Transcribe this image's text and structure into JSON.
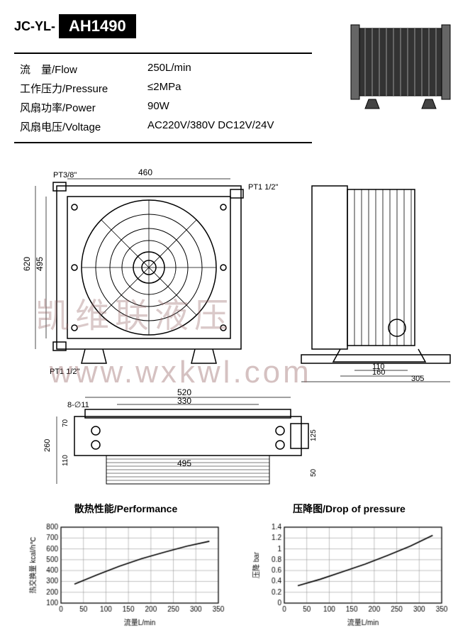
{
  "header": {
    "prefix": "JC-YL-",
    "model": "AH1490"
  },
  "specs": [
    {
      "label": "流　量/Flow",
      "value": "250L/min"
    },
    {
      "label": "工作压力/Pressure",
      "value": "≤2MPa"
    },
    {
      "label": "风扇功率/Power",
      "value": "90W"
    },
    {
      "label": "风扇电压/Voltage",
      "value": "AC220V/380V DC12V/24V"
    }
  ],
  "watermarks": {
    "chinese": "凯维联液压",
    "url": "www.wxkwl.com"
  },
  "dimensions": {
    "front": {
      "width_top": "460",
      "pt_top_left": "PT3/8\"",
      "pt_right": "PT1 1/2\"",
      "pt_bottom": "PT1 1/2\"",
      "height_left_outer": "620",
      "height_left_inner": "495"
    },
    "side": {
      "foot_inner": "110",
      "foot_mid": "160",
      "foot_outer": "305"
    },
    "top": {
      "holes": "8-∅11",
      "width_outer": "520",
      "width_mid": "330",
      "width_body": "495",
      "height_left": "260",
      "h_70": "70",
      "h_110": "110",
      "h_125": "125",
      "h_50": "50"
    }
  },
  "charts": {
    "performance": {
      "title": "散热性能/Performance",
      "ylabel": "热交换量 kcal/h℃",
      "xlabel": "流量L/min",
      "x": [
        30,
        80,
        130,
        180,
        230,
        280,
        330
      ],
      "y": [
        275,
        360,
        440,
        510,
        570,
        625,
        670
      ],
      "xlim": [
        0,
        350
      ],
      "ylim": [
        100,
        800
      ],
      "xticks": [
        0,
        50,
        100,
        150,
        200,
        250,
        300,
        350
      ],
      "yticks": [
        100,
        200,
        300,
        400,
        500,
        600,
        700,
        800
      ],
      "line_color": "#000000",
      "grid_color": "#888888",
      "bg": "#ffffff"
    },
    "pressure": {
      "title": "压降图/Drop of pressure",
      "ylabel": "压降 bar",
      "xlabel": "流量L/min",
      "x": [
        30,
        80,
        130,
        180,
        230,
        280,
        330
      ],
      "y": [
        0.32,
        0.44,
        0.58,
        0.72,
        0.88,
        1.05,
        1.25
      ],
      "xlim": [
        0,
        350
      ],
      "ylim": [
        0,
        1.4
      ],
      "xticks": [
        0,
        50,
        100,
        150,
        200,
        250,
        300,
        350
      ],
      "yticks": [
        0,
        0.2,
        0.4,
        0.6,
        0.8,
        1.0,
        1.2,
        1.4
      ],
      "line_color": "#000000",
      "grid_color": "#888888",
      "bg": "#ffffff"
    }
  }
}
